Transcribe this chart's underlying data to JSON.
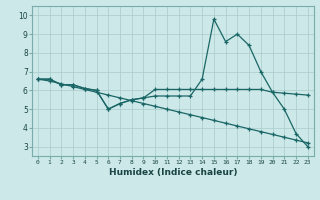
{
  "xlabel": "Humidex (Indice chaleur)",
  "bg_color": "#cce8e8",
  "grid_color": "#aacccc",
  "line_color": "#1a6666",
  "x_ticks": [
    0,
    1,
    2,
    3,
    4,
    5,
    6,
    7,
    8,
    9,
    10,
    11,
    12,
    13,
    14,
    15,
    16,
    17,
    18,
    19,
    20,
    21,
    22,
    23
  ],
  "y_ticks": [
    3,
    4,
    5,
    6,
    7,
    8,
    9,
    10
  ],
  "ylim": [
    2.5,
    10.5
  ],
  "xlim": [
    -0.5,
    23.5
  ],
  "line1_x": [
    0,
    1,
    2,
    3,
    4,
    5,
    6,
    7,
    8,
    9,
    10,
    11,
    12,
    13,
    14,
    15,
    16,
    17,
    18,
    19,
    20,
    21,
    22,
    23
  ],
  "line1_y": [
    6.6,
    6.6,
    6.3,
    6.3,
    6.1,
    6.0,
    5.0,
    5.3,
    5.5,
    5.6,
    5.7,
    5.7,
    5.7,
    5.7,
    6.6,
    9.8,
    8.6,
    9.0,
    8.4,
    7.0,
    5.9,
    5.0,
    3.7,
    3.0
  ],
  "line2_x": [
    0,
    1,
    2,
    3,
    4,
    5,
    6,
    7,
    8,
    9,
    10,
    11,
    12,
    13,
    14,
    15,
    16,
    17,
    18,
    19,
    20,
    21,
    22,
    23
  ],
  "line2_y": [
    6.6,
    6.6,
    6.3,
    6.3,
    6.1,
    6.0,
    5.0,
    5.3,
    5.5,
    5.6,
    6.05,
    6.05,
    6.05,
    6.05,
    6.05,
    6.05,
    6.05,
    6.05,
    6.05,
    6.05,
    5.9,
    5.85,
    5.8,
    5.75
  ],
  "line3_x": [
    0,
    1,
    2,
    3,
    4,
    5,
    6,
    7,
    8,
    9,
    10,
    11,
    12,
    13,
    14,
    15,
    16,
    17,
    18,
    19,
    20,
    21,
    22,
    23
  ],
  "line3_y": [
    6.6,
    6.5,
    6.35,
    6.2,
    6.05,
    5.9,
    5.75,
    5.6,
    5.45,
    5.3,
    5.15,
    5.0,
    4.85,
    4.7,
    4.55,
    4.4,
    4.25,
    4.1,
    3.95,
    3.8,
    3.65,
    3.5,
    3.35,
    3.2
  ],
  "marker": "+",
  "marker_size": 3,
  "line_width": 0.9
}
